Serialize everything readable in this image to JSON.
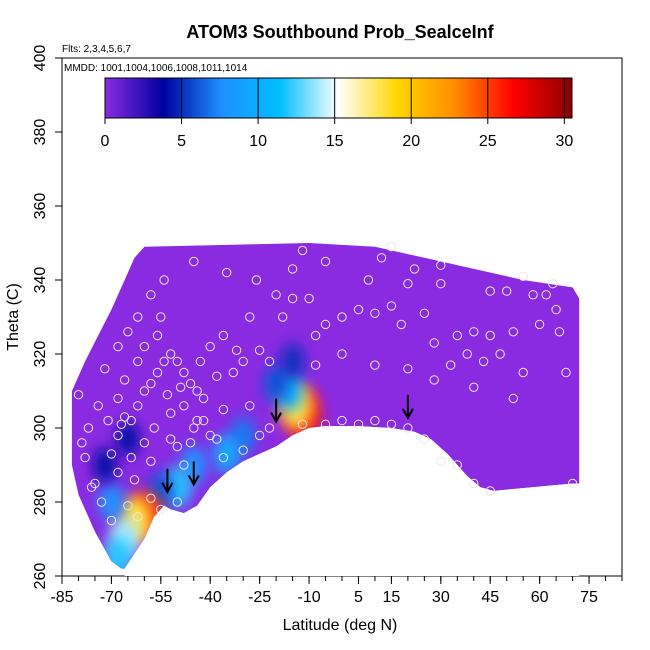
{
  "chart_data": {
    "type": "heatmap",
    "title": "ATOM3 Southbound Prob_SealceInf",
    "subtitle_flights": "Flts: 2,3,4,5,6,7",
    "subtitle_dates": "MMDD: 1001,1004,1006,1008,1011,1014",
    "xlabel": "Latitude (deg N)",
    "ylabel": "Theta (C)",
    "xlim": [
      -85,
      85
    ],
    "ylim": [
      260,
      400
    ],
    "x_ticks": [
      -85,
      -70,
      -55,
      -40,
      -25,
      -10,
      5,
      15,
      30,
      45,
      60,
      75
    ],
    "x_ticks_label": [
      "-85",
      "-70",
      "-55",
      "-40",
      "-25",
      "-10",
      "5",
      "15",
      "30",
      "45",
      "60",
      "75"
    ],
    "y_ticks": [
      260,
      280,
      300,
      320,
      340,
      360,
      380,
      400
    ],
    "y_ticks_label": [
      "260",
      "280",
      "300",
      "320",
      "340",
      "360",
      "380",
      "400"
    ],
    "colorbar": {
      "min": 0,
      "max": 30.5,
      "ticks": [
        0,
        5,
        10,
        15,
        20,
        25,
        30
      ],
      "ticks_label": [
        "0",
        "5",
        "10",
        "15",
        "20",
        "25",
        "30"
      ],
      "colors": [
        "#8a2be2",
        "#0000a0",
        "#1e90ff",
        "#00bfff",
        "#ffffff",
        "#ffd700",
        "#ff8c00",
        "#ff0000",
        "#8b0000"
      ]
    },
    "region_boundary_top": [
      [
        -82,
        310
      ],
      [
        -78,
        318
      ],
      [
        -74,
        325
      ],
      [
        -70,
        332
      ],
      [
        -66,
        340
      ],
      [
        -63,
        346
      ],
      [
        -60,
        349
      ],
      [
        -10,
        350
      ],
      [
        10,
        349
      ],
      [
        25,
        346
      ],
      [
        40,
        343
      ],
      [
        55,
        340
      ],
      [
        70,
        338
      ],
      [
        72,
        335
      ]
    ],
    "region_boundary_bottom": [
      [
        -67,
        262
      ],
      [
        -70,
        264
      ],
      [
        -75,
        272
      ],
      [
        -80,
        282
      ],
      [
        -82,
        290
      ],
      [
        -82,
        305
      ]
    ],
    "terrain_boundary": [
      [
        -66,
        262
      ],
      [
        -60,
        270
      ],
      [
        -57,
        276
      ],
      [
        -54,
        279
      ],
      [
        -52,
        278
      ],
      [
        -48,
        277
      ],
      [
        -44,
        279
      ],
      [
        -40,
        284
      ],
      [
        -35,
        288
      ],
      [
        -30,
        291
      ],
      [
        -25,
        293
      ],
      [
        -20,
        295
      ],
      [
        -15,
        298
      ],
      [
        -10,
        300
      ],
      [
        -5,
        300.5
      ],
      [
        5,
        300.5
      ],
      [
        15,
        300
      ],
      [
        22,
        299
      ],
      [
        27,
        297
      ],
      [
        32,
        293
      ],
      [
        38,
        287
      ],
      [
        42,
        284
      ],
      [
        46,
        283
      ],
      [
        70,
        285
      ],
      [
        72,
        285
      ]
    ],
    "field_patches": [
      {
        "lat": -12,
        "theta": 304,
        "value": 26
      },
      {
        "lat": -14,
        "theta": 306,
        "value": 18
      },
      {
        "lat": -16,
        "theta": 310,
        "value": 10
      },
      {
        "lat": -20,
        "theta": 312,
        "value": 6
      },
      {
        "lat": -15,
        "theta": 318,
        "value": 5
      },
      {
        "lat": -30,
        "theta": 298,
        "value": 7
      },
      {
        "lat": -35,
        "theta": 293,
        "value": 10
      },
      {
        "lat": -45,
        "theta": 290,
        "value": 8
      },
      {
        "lat": -50,
        "theta": 284,
        "value": 12
      },
      {
        "lat": -55,
        "theta": 283,
        "value": 6
      },
      {
        "lat": -60,
        "theta": 276,
        "value": 25
      },
      {
        "lat": -63,
        "theta": 275,
        "value": 18
      },
      {
        "lat": -66,
        "theta": 270,
        "value": 14
      },
      {
        "lat": -68,
        "theta": 265,
        "value": 12
      },
      {
        "lat": -70,
        "theta": 280,
        "value": 8
      },
      {
        "lat": -72,
        "theta": 290,
        "value": 4
      },
      {
        "lat": -65,
        "theta": 297,
        "value": 4
      }
    ],
    "arrows": [
      [
        -53,
        283
      ],
      [
        -45,
        285
      ],
      [
        -20,
        302
      ],
      [
        20,
        303
      ]
    ],
    "observations": [
      [
        -80,
        309
      ],
      [
        -78,
        292
      ],
      [
        -75,
        285
      ],
      [
        -70,
        293
      ],
      [
        -68,
        298
      ],
      [
        -67,
        301
      ],
      [
        -66,
        303
      ],
      [
        -64,
        302
      ],
      [
        -62,
        306
      ],
      [
        -60,
        310
      ],
      [
        -58,
        312
      ],
      [
        -56,
        315
      ],
      [
        -54,
        318
      ],
      [
        -52,
        320
      ],
      [
        -50,
        318
      ],
      [
        -48,
        315
      ],
      [
        -46,
        312
      ],
      [
        -44,
        310
      ],
      [
        -42,
        308
      ],
      [
        -40,
        322
      ],
      [
        -36,
        325
      ],
      [
        -33,
        315
      ],
      [
        -30,
        318
      ],
      [
        -28,
        330
      ],
      [
        -25,
        321
      ],
      [
        -20,
        336
      ],
      [
        -18,
        330
      ],
      [
        -15,
        343
      ],
      [
        -12,
        348
      ],
      [
        -10,
        335
      ],
      [
        -8,
        325
      ],
      [
        -5,
        328
      ],
      [
        0,
        330
      ],
      [
        5,
        332
      ],
      [
        8,
        340
      ],
      [
        10,
        331
      ],
      [
        12,
        346
      ],
      [
        15,
        333
      ],
      [
        18,
        328
      ],
      [
        20,
        339
      ],
      [
        22,
        343
      ],
      [
        25,
        331
      ],
      [
        28,
        323
      ],
      [
        30,
        339
      ],
      [
        33,
        317
      ],
      [
        35,
        325
      ],
      [
        38,
        320
      ],
      [
        40,
        326
      ],
      [
        43,
        318
      ],
      [
        45,
        325
      ],
      [
        48,
        320
      ],
      [
        50,
        337
      ],
      [
        52,
        326
      ],
      [
        55,
        315
      ],
      [
        58,
        336
      ],
      [
        60,
        328
      ],
      [
        62,
        336
      ],
      [
        65,
        332
      ],
      [
        68,
        315
      ],
      [
        70,
        285
      ],
      [
        -66,
        313
      ],
      [
        -62,
        318
      ],
      [
        -60,
        322
      ],
      [
        -56,
        325
      ],
      [
        -55,
        330
      ],
      [
        -52,
        297
      ],
      [
        -50,
        295
      ],
      [
        -48,
        290
      ],
      [
        -45,
        300
      ],
      [
        -42,
        302
      ],
      [
        -38,
        297
      ],
      [
        -36,
        292
      ],
      [
        -30,
        294
      ],
      [
        -25,
        298
      ],
      [
        -22,
        300
      ],
      [
        -12,
        301
      ],
      [
        -5,
        301
      ],
      [
        0,
        302
      ],
      [
        5,
        301
      ],
      [
        10,
        302
      ],
      [
        15,
        301
      ],
      [
        20,
        300
      ],
      [
        25,
        297
      ],
      [
        30,
        291
      ],
      [
        35,
        290
      ],
      [
        40,
        285
      ],
      [
        45,
        283
      ],
      [
        -70,
        275
      ],
      [
        -65,
        279
      ],
      [
        -62,
        276
      ],
      [
        -58,
        281
      ],
      [
        -55,
        278
      ],
      [
        -50,
        280
      ],
      [
        -52,
        304
      ],
      [
        -48,
        306
      ],
      [
        -44,
        302
      ],
      [
        -40,
        298
      ],
      [
        -60,
        296
      ],
      [
        -57,
        300
      ],
      [
        -58,
        336
      ],
      [
        -62,
        330
      ],
      [
        -65,
        326
      ],
      [
        -68,
        322
      ],
      [
        -72,
        316
      ],
      [
        -74,
        306
      ],
      [
        -77,
        300
      ],
      [
        -79,
        296
      ],
      [
        -76,
        284
      ],
      [
        -73,
        280
      ],
      [
        -68,
        288
      ],
      [
        -63,
        286
      ],
      [
        -54,
        340
      ],
      [
        -45,
        345
      ],
      [
        -35,
        342
      ],
      [
        -26,
        340
      ],
      [
        -15,
        335
      ],
      [
        -5,
        345
      ],
      [
        15,
        349
      ],
      [
        30,
        344
      ],
      [
        45,
        337
      ],
      [
        55,
        341
      ],
      [
        64,
        339
      ],
      [
        66,
        326
      ],
      [
        52,
        308
      ],
      [
        40,
        311
      ],
      [
        28,
        313
      ],
      [
        20,
        316
      ],
      [
        10,
        317
      ],
      [
        0,
        320
      ],
      [
        -8,
        317
      ],
      [
        -22,
        318
      ],
      [
        -28,
        306
      ],
      [
        -36,
        305
      ],
      [
        -46,
        296
      ],
      [
        -68,
        308
      ],
      [
        -71,
        302
      ],
      [
        -64,
        292
      ],
      [
        -58,
        291
      ],
      [
        -53,
        309
      ],
      [
        -49,
        311
      ],
      [
        -43,
        318
      ],
      [
        -38,
        314
      ],
      [
        -32,
        321
      ]
    ]
  }
}
